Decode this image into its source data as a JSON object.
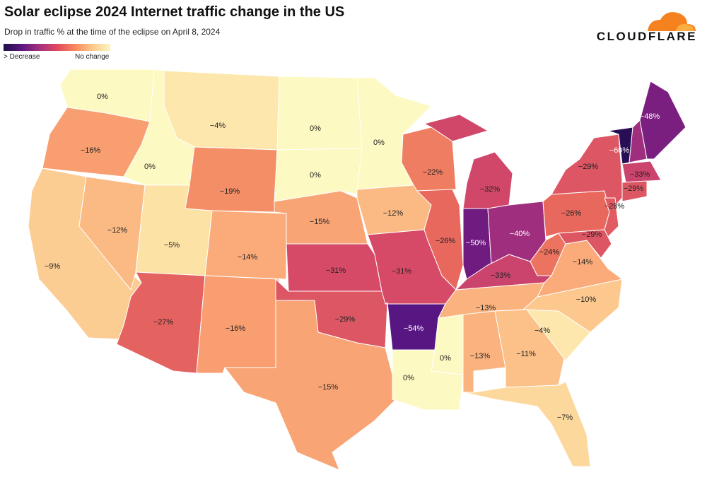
{
  "title": "Solar eclipse 2024 Internet traffic change in the US",
  "subtitle": "Drop in traffic % at the time of the eclipse on April 8, 2024",
  "legend": {
    "low_label": "> Decrease",
    "high_label": "No change"
  },
  "brand": {
    "name": "CLOUDFLARE",
    "logo_color": "#f6821f"
  },
  "states": [
    {
      "code": "WA",
      "value": 0
    },
    {
      "code": "OR",
      "value": -16
    },
    {
      "code": "CA",
      "value": -9
    },
    {
      "code": "ID",
      "value": 0
    },
    {
      "code": "NV",
      "value": -12
    },
    {
      "code": "UT",
      "value": -5
    },
    {
      "code": "AZ",
      "value": -27
    },
    {
      "code": "MT",
      "value": -4
    },
    {
      "code": "WY",
      "value": -19
    },
    {
      "code": "CO",
      "value": -14
    },
    {
      "code": "NM",
      "value": -16
    },
    {
      "code": "ND",
      "value": 0
    },
    {
      "code": "SD",
      "value": 0
    },
    {
      "code": "NE",
      "value": -15
    },
    {
      "code": "KS",
      "value": -31
    },
    {
      "code": "OK",
      "value": -29
    },
    {
      "code": "TX",
      "value": -15
    },
    {
      "code": "MN",
      "value": 0
    },
    {
      "code": "IA",
      "value": -12
    },
    {
      "code": "MO",
      "value": -31
    },
    {
      "code": "AR",
      "value": -54
    },
    {
      "code": "LA",
      "value": 0
    },
    {
      "code": "WI",
      "value": -22
    },
    {
      "code": "IL",
      "value": -26
    },
    {
      "code": "MI",
      "value": -32
    },
    {
      "code": "IN",
      "value": -50
    },
    {
      "code": "OH",
      "value": -40
    },
    {
      "code": "KY",
      "value": -33
    },
    {
      "code": "TN",
      "value": -13
    },
    {
      "code": "MS",
      "value": 0
    },
    {
      "code": "AL",
      "value": -13
    },
    {
      "code": "GA",
      "value": -11
    },
    {
      "code": "FL",
      "value": -7
    },
    {
      "code": "SC",
      "value": -4
    },
    {
      "code": "NC",
      "value": -10
    },
    {
      "code": "VA",
      "value": -14
    },
    {
      "code": "WV",
      "value": -24
    },
    {
      "code": "PA",
      "value": -26
    },
    {
      "code": "NY",
      "value": -29
    },
    {
      "code": "VT",
      "value": -60
    },
    {
      "code": "NH",
      "value": -40
    },
    {
      "code": "ME",
      "value": -48
    },
    {
      "code": "MA",
      "value": -33
    },
    {
      "code": "CT",
      "value": -29
    },
    {
      "code": "NJ",
      "value": -28
    },
    {
      "code": "MD",
      "value": -29
    }
  ]
}
